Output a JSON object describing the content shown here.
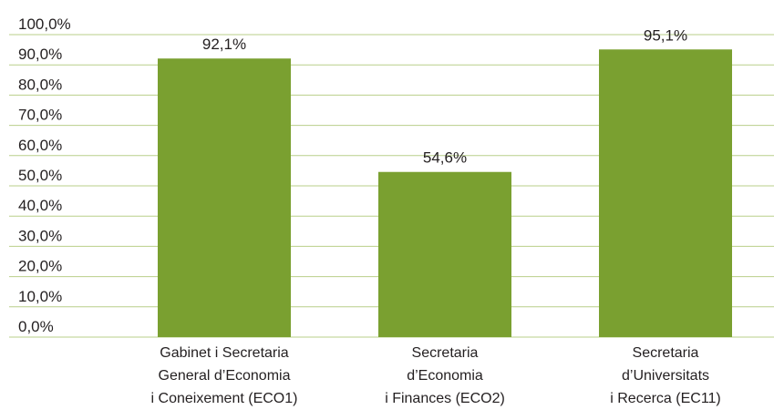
{
  "chart_data": {
    "type": "bar",
    "categories": [
      [
        "Gabinet i Secretaria",
        "General d’Economia",
        "i Coneixement (ECO1)"
      ],
      [
        "Secretaria",
        "d’Economia",
        "i Finances (ECO2)"
      ],
      [
        "Secretaria",
        "d’Universitats",
        "i Recerca (EC11)"
      ]
    ],
    "values": [
      92.1,
      54.6,
      95.1
    ],
    "data_labels": [
      "92,1%",
      "54,6%",
      "95,1%"
    ],
    "y_ticks": [
      "0,0%",
      "10,0%",
      "20,0%",
      "30,0%",
      "40,0%",
      "50,0%",
      "60,0%",
      "70,0%",
      "80,0%",
      "90,0%",
      "100,0%"
    ],
    "ylim": [
      0,
      100
    ],
    "grid": true,
    "legend": "none",
    "title": "",
    "xlabel": "",
    "ylabel": "",
    "colors": {
      "bar": "#7aa030",
      "grid": "#b9cf8a",
      "text": "#231f20"
    }
  }
}
